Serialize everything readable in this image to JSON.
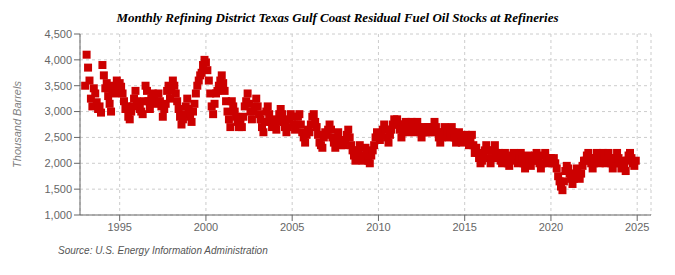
{
  "chart_data": {
    "type": "scatter",
    "title": "Monthly Refining District Texas Gulf Coast Residual Fuel Oil Stocks at Refineries",
    "ylabel": "Thousand Barrels",
    "annotations": [
      "Source: U.S. Energy Information Administration"
    ],
    "color": "#CC0000",
    "marker": "square",
    "grid": true,
    "xlim": [
      1992.7,
      2025.8
    ],
    "xticks": [
      1995,
      2000,
      2005,
      2010,
      2015,
      2020,
      2025
    ],
    "ylim": [
      1000,
      4500
    ],
    "yticks": [
      {
        "value": 1000,
        "label": "1,000"
      },
      {
        "value": 1500,
        "label": "1,500"
      },
      {
        "value": 2000,
        "label": "2,000"
      },
      {
        "value": 2500,
        "label": "2,500"
      },
      {
        "value": 3000,
        "label": "3,000"
      },
      {
        "value": 3500,
        "label": "3,500"
      },
      {
        "value": 4000,
        "label": "4,000"
      },
      {
        "value": 4500,
        "label": "4,500"
      }
    ],
    "x": [
      1993.0,
      1993.083,
      1993.167,
      1993.25,
      1993.333,
      1993.417,
      1993.5,
      1993.583,
      1993.667,
      1993.75,
      1993.833,
      1993.917,
      1994.0,
      1994.083,
      1994.167,
      1994.25,
      1994.333,
      1994.417,
      1994.5,
      1994.583,
      1994.667,
      1994.75,
      1994.833,
      1994.917,
      1995.0,
      1995.083,
      1995.167,
      1995.25,
      1995.333,
      1995.417,
      1995.5,
      1995.583,
      1995.667,
      1995.75,
      1995.833,
      1995.917,
      1996.0,
      1996.083,
      1996.167,
      1996.25,
      1996.333,
      1996.417,
      1996.5,
      1996.583,
      1996.667,
      1996.75,
      1996.833,
      1996.917,
      1997.0,
      1997.083,
      1997.167,
      1997.25,
      1997.333,
      1997.417,
      1997.5,
      1997.583,
      1997.667,
      1997.75,
      1997.833,
      1997.917,
      1998.0,
      1998.083,
      1998.167,
      1998.25,
      1998.333,
      1998.417,
      1998.5,
      1998.583,
      1998.667,
      1998.75,
      1998.833,
      1998.917,
      1999.0,
      1999.083,
      1999.167,
      1999.25,
      1999.333,
      1999.417,
      1999.5,
      1999.583,
      1999.667,
      1999.75,
      1999.833,
      1999.917,
      2000.0,
      2000.083,
      2000.167,
      2000.25,
      2000.333,
      2000.417,
      2000.5,
      2000.583,
      2000.667,
      2000.75,
      2000.833,
      2000.917,
      2001.0,
      2001.083,
      2001.167,
      2001.25,
      2001.333,
      2001.417,
      2001.5,
      2001.583,
      2001.667,
      2001.75,
      2001.833,
      2001.917,
      2002.0,
      2002.083,
      2002.167,
      2002.25,
      2002.333,
      2002.417,
      2002.5,
      2002.583,
      2002.667,
      2002.75,
      2002.833,
      2002.917,
      2003.0,
      2003.083,
      2003.167,
      2003.25,
      2003.333,
      2003.417,
      2003.5,
      2003.583,
      2003.667,
      2003.75,
      2003.833,
      2003.917,
      2004.0,
      2004.083,
      2004.167,
      2004.25,
      2004.333,
      2004.417,
      2004.5,
      2004.583,
      2004.667,
      2004.75,
      2004.833,
      2004.917,
      2005.0,
      2005.083,
      2005.167,
      2005.25,
      2005.333,
      2005.417,
      2005.5,
      2005.583,
      2005.667,
      2005.75,
      2005.833,
      2005.917,
      2006.0,
      2006.083,
      2006.167,
      2006.25,
      2006.333,
      2006.417,
      2006.5,
      2006.583,
      2006.667,
      2006.75,
      2006.833,
      2006.917,
      2007.0,
      2007.083,
      2007.167,
      2007.25,
      2007.333,
      2007.417,
      2007.5,
      2007.583,
      2007.667,
      2007.75,
      2007.833,
      2007.917,
      2008.0,
      2008.083,
      2008.167,
      2008.25,
      2008.333,
      2008.417,
      2008.5,
      2008.583,
      2008.667,
      2008.75,
      2008.833,
      2008.917,
      2009.0,
      2009.083,
      2009.167,
      2009.25,
      2009.333,
      2009.417,
      2009.5,
      2009.583,
      2009.667,
      2009.75,
      2009.833,
      2009.917,
      2010.0,
      2010.083,
      2010.167,
      2010.25,
      2010.333,
      2010.417,
      2010.5,
      2010.583,
      2010.667,
      2010.75,
      2010.833,
      2010.917,
      2011.0,
      2011.083,
      2011.167,
      2011.25,
      2011.333,
      2011.417,
      2011.5,
      2011.583,
      2011.667,
      2011.75,
      2011.833,
      2011.917,
      2012.0,
      2012.083,
      2012.167,
      2012.25,
      2012.333,
      2012.417,
      2012.5,
      2012.583,
      2012.667,
      2012.75,
      2012.833,
      2012.917,
      2013.0,
      2013.083,
      2013.167,
      2013.25,
      2013.333,
      2013.417,
      2013.5,
      2013.583,
      2013.667,
      2013.75,
      2013.833,
      2013.917,
      2014.0,
      2014.083,
      2014.167,
      2014.25,
      2014.333,
      2014.417,
      2014.5,
      2014.583,
      2014.667,
      2014.75,
      2014.833,
      2014.917,
      2015.0,
      2015.083,
      2015.167,
      2015.25,
      2015.333,
      2015.417,
      2015.5,
      2015.583,
      2015.667,
      2015.75,
      2015.833,
      2015.917,
      2016.0,
      2016.083,
      2016.167,
      2016.25,
      2016.333,
      2016.417,
      2016.5,
      2016.583,
      2016.667,
      2016.75,
      2016.833,
      2016.917,
      2017.0,
      2017.083,
      2017.167,
      2017.25,
      2017.333,
      2017.417,
      2017.5,
      2017.583,
      2017.667,
      2017.75,
      2017.833,
      2017.917,
      2018.0,
      2018.083,
      2018.167,
      2018.25,
      2018.333,
      2018.417,
      2018.5,
      2018.583,
      2018.667,
      2018.75,
      2018.833,
      2018.917,
      2019.0,
      2019.083,
      2019.167,
      2019.25,
      2019.333,
      2019.417,
      2019.5,
      2019.583,
      2019.667,
      2019.75,
      2019.833,
      2019.917,
      2020.0,
      2020.083,
      2020.167,
      2020.25,
      2020.333,
      2020.417,
      2020.5,
      2020.583,
      2020.667,
      2020.75,
      2020.833,
      2020.917,
      2021.0,
      2021.083,
      2021.167,
      2021.25,
      2021.333,
      2021.417,
      2021.5,
      2021.583,
      2021.667,
      2021.75,
      2021.833,
      2021.917,
      2022.0,
      2022.083,
      2022.167,
      2022.25,
      2022.333,
      2022.417,
      2022.5,
      2022.583,
      2022.667,
      2022.75,
      2022.833,
      2022.917,
      2023.0,
      2023.083,
      2023.167,
      2023.25,
      2023.333,
      2023.417,
      2023.5,
      2023.583,
      2023.667,
      2023.75,
      2023.833,
      2023.917,
      2024.0,
      2024.083,
      2024.167,
      2024.25,
      2024.333,
      2024.417,
      2024.5,
      2024.583,
      2024.667,
      2024.75,
      2024.833,
      2024.917
    ],
    "values": [
      3500,
      4100,
      3850,
      3600,
      3250,
      3100,
      3450,
      3350,
      3180,
      3050,
      3100,
      2980,
      3900,
      3700,
      3450,
      3550,
      3300,
      3150,
      3000,
      3400,
      3500,
      3350,
      3600,
      3450,
      3550,
      3480,
      3350,
      3200,
      3050,
      3100,
      2900,
      2850,
      3000,
      3100,
      3250,
      3400,
      3200,
      3150,
      3050,
      3000,
      2950,
      3200,
      3500,
      3400,
      3200,
      3050,
      3250,
      3350,
      3300,
      3150,
      3200,
      3350,
      3200,
      3100,
      2900,
      3050,
      3150,
      3400,
      3500,
      3250,
      3400,
      3600,
      3500,
      3350,
      3200,
      3050,
      2900,
      2750,
      2850,
      2950,
      3100,
      3250,
      3050,
      2900,
      2800,
      3000,
      3150,
      3350,
      3500,
      3600,
      3700,
      3750,
      3900,
      4000,
      3950,
      3800,
      3600,
      3350,
      3100,
      2950,
      3150,
      3350,
      3400,
      3500,
      3600,
      3700,
      3550,
      3400,
      3200,
      3000,
      2850,
      2700,
      3200,
      3100,
      3000,
      2900,
      2800,
      2700,
      2800,
      2700,
      2900,
      3100,
      3200,
      3350,
      3150,
      3000,
      2850,
      3000,
      3100,
      3250,
      3100,
      2950,
      2850,
      2700,
      2600,
      2800,
      3000,
      3100,
      2950,
      2800,
      2700,
      2850,
      2750,
      2650,
      2800,
      2950,
      3050,
      2950,
      2800,
      2700,
      2600,
      2700,
      2850,
      2950,
      2900,
      2750,
      2650,
      2750,
      2900,
      2950,
      2750,
      2600,
      2500,
      2400,
      2550,
      2650,
      2600,
      2750,
      2900,
      2950,
      2800,
      2700,
      2550,
      2400,
      2350,
      2300,
      2500,
      2600,
      2550,
      2650,
      2750,
      2650,
      2500,
      2400,
      2300,
      2450,
      2600,
      2450,
      2350,
      2450,
      2350,
      2450,
      2550,
      2650,
      2500,
      2350,
      2250,
      2150,
      2050,
      2100,
      2250,
      2350,
      2150,
      2050,
      2150,
      2300,
      2200,
      2050,
      2000,
      2150,
      2250,
      2350,
      2500,
      2600,
      2550,
      2450,
      2550,
      2650,
      2750,
      2650,
      2500,
      2400,
      2550,
      2650,
      2750,
      2850,
      2750,
      2850,
      2750,
      2650,
      2500,
      2600,
      2750,
      2800,
      2700,
      2600,
      2700,
      2800,
      2700,
      2600,
      2700,
      2800,
      2700,
      2600,
      2500,
      2600,
      2700,
      2600,
      2700,
      2600,
      2700,
      2600,
      2700,
      2800,
      2700,
      2600,
      2500,
      2400,
      2500,
      2600,
      2700,
      2600,
      2600,
      2500,
      2600,
      2700,
      2600,
      2500,
      2400,
      2500,
      2600,
      2500,
      2400,
      2500,
      2450,
      2550,
      2450,
      2350,
      2450,
      2550,
      2350,
      2200,
      2300,
      2200,
      2100,
      2000,
      2050,
      2150,
      2250,
      2350,
      2250,
      2100,
      2000,
      2100,
      2250,
      2350,
      2200,
      2100,
      2200,
      2050,
      2000,
      2100,
      2200,
      2100,
      2000,
      1950,
      2050,
      2150,
      2200,
      2100,
      2100,
      2000,
      2100,
      2200,
      2100,
      2000,
      1900,
      2050,
      2150,
      2050,
      1950,
      2050,
      2050,
      2150,
      2200,
      2100,
      2000,
      1900,
      2000,
      2150,
      2200,
      2100,
      2000,
      2100,
      2100,
      2000,
      2100,
      2000,
      1900,
      1750,
      1650,
      1550,
      1480,
      1650,
      1850,
      1950,
      1900,
      1800,
      1700,
      1600,
      1700,
      1800,
      1900,
      1800,
      1700,
      1800,
      1950,
      2050,
      2050,
      2150,
      2200,
      2100,
      2000,
      1900,
      2000,
      2100,
      2200,
      2100,
      2000,
      2100,
      2200,
      2100,
      2000,
      2100,
      2200,
      2100,
      2000,
      1900,
      2000,
      2100,
      2200,
      2100,
      2000,
      1900,
      2050,
      1950,
      1850,
      2050,
      2150,
      2200,
      2100,
      2000,
      1950,
      2050
    ]
  }
}
